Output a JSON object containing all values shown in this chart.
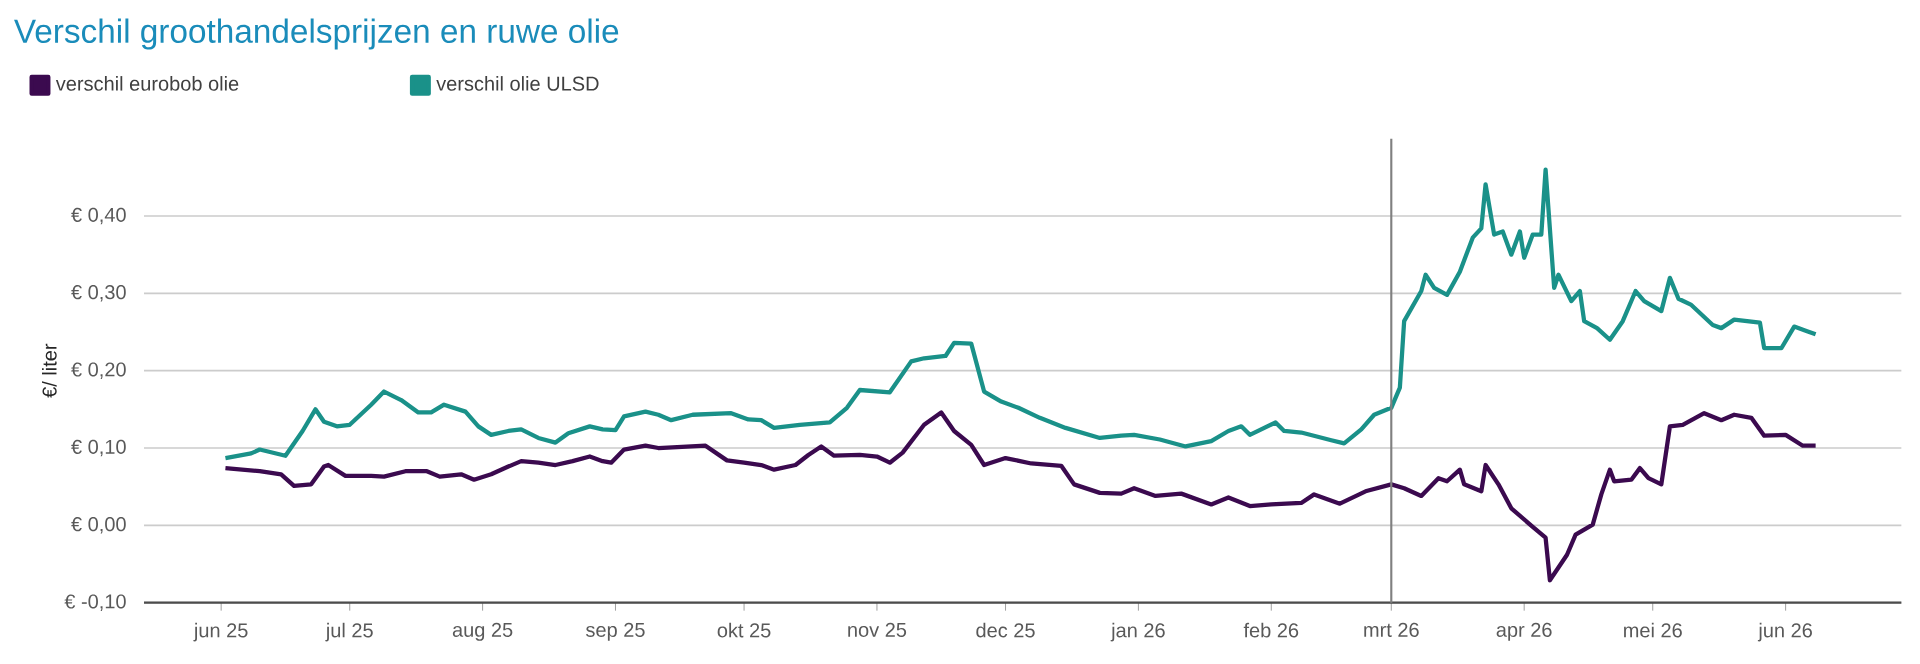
{
  "chart_data": {
    "type": "line",
    "title": "Verschil groothandelsprijzen en ruwe olie",
    "ylabel": "€/ liter",
    "xlim": [
      "2025-05-14",
      "2026-06-28"
    ],
    "ylim": [
      -0.1,
      0.5
    ],
    "xticks": [
      {
        "value": "2025-06-01",
        "label": "jun 25"
      },
      {
        "value": "2025-07-01",
        "label": "jul 25"
      },
      {
        "value": "2025-08-01",
        "label": "aug 25"
      },
      {
        "value": "2025-09-01",
        "label": "sep 25"
      },
      {
        "value": "2025-10-01",
        "label": "okt 25"
      },
      {
        "value": "2025-11-01",
        "label": "nov 25"
      },
      {
        "value": "2025-12-01",
        "label": "dec 25"
      },
      {
        "value": "2026-01-01",
        "label": "jan 26"
      },
      {
        "value": "2026-02-01",
        "label": "feb 26"
      },
      {
        "value": "2026-03-01",
        "label": "mrt 26"
      },
      {
        "value": "2026-04-01",
        "label": "apr 26"
      },
      {
        "value": "2026-05-01",
        "label": "mei 26"
      },
      {
        "value": "2026-06-01",
        "label": "jun 26"
      }
    ],
    "yticks": [
      {
        "value": -0.1,
        "label": "€ -0,10"
      },
      {
        "value": 0,
        "label": "€ 0,00"
      },
      {
        "value": 0.1,
        "label": "€ 0,10"
      },
      {
        "value": 0.2,
        "label": "€ 0,20"
      },
      {
        "value": 0.3,
        "label": "€ 0,30"
      },
      {
        "value": 0.4,
        "label": "€ 0,40"
      }
    ],
    "grid": "y",
    "legend": "top left",
    "ref_lines": [
      {
        "axis": "x",
        "value": "2026-03-01",
        "color": "#808080"
      }
    ],
    "series": [
      {
        "name": "verschil eurobob olie",
        "color": "#3b0a4f",
        "x": [
          "2025-06-02",
          "2025-06-10",
          "2025-06-15",
          "2025-06-18",
          "2025-06-22",
          "2025-06-25",
          "2025-06-26",
          "2025-06-30",
          "2025-07-06",
          "2025-07-09",
          "2025-07-14",
          "2025-07-19",
          "2025-07-22",
          "2025-07-27",
          "2025-07-30",
          "2025-08-03",
          "2025-08-07",
          "2025-08-10",
          "2025-08-14",
          "2025-08-18",
          "2025-08-22",
          "2025-08-26",
          "2025-08-29",
          "2025-08-31",
          "2025-09-03",
          "2025-09-08",
          "2025-09-11",
          "2025-09-22",
          "2025-09-27",
          "2025-10-01",
          "2025-10-05",
          "2025-10-08",
          "2025-10-13",
          "2025-10-16",
          "2025-10-19",
          "2025-10-22",
          "2025-10-28",
          "2025-11-01",
          "2025-11-04",
          "2025-11-07",
          "2025-11-12",
          "2025-11-16",
          "2025-11-19",
          "2025-11-23",
          "2025-11-26",
          "2025-12-01",
          "2025-12-07",
          "2025-12-14",
          "2025-12-17",
          "2025-12-23",
          "2025-12-28",
          "2025-12-31",
          "2026-01-05",
          "2026-01-11",
          "2026-01-18",
          "2026-01-22",
          "2026-01-27",
          "2026-02-01",
          "2026-02-08",
          "2026-02-11",
          "2026-02-17",
          "2026-02-23",
          "2026-03-01",
          "2026-03-04",
          "2026-03-08",
          "2026-03-12",
          "2026-03-14",
          "2026-03-17",
          "2026-03-18",
          "2026-03-22",
          "2026-03-23",
          "2026-03-26",
          "2026-03-29",
          "2026-04-03",
          "2026-04-06",
          "2026-04-07",
          "2026-04-11",
          "2026-04-13",
          "2026-04-17",
          "2026-04-19",
          "2026-04-21",
          "2026-04-22",
          "2026-04-26",
          "2026-04-28",
          "2026-04-30",
          "2026-05-03",
          "2026-05-05",
          "2026-05-08",
          "2026-05-13",
          "2026-05-17",
          "2026-05-20",
          "2026-05-24",
          "2026-05-27",
          "2026-06-01",
          "2026-06-05",
          "2026-06-08"
        ],
        "values": [
          0.074,
          0.07,
          0.066,
          0.051,
          0.053,
          0.076,
          0.078,
          0.064,
          0.064,
          0.063,
          0.07,
          0.07,
          0.063,
          0.066,
          0.059,
          0.066,
          0.076,
          0.083,
          0.081,
          0.078,
          0.083,
          0.089,
          0.083,
          0.081,
          0.098,
          0.103,
          0.1,
          0.103,
          0.084,
          0.081,
          0.078,
          0.072,
          0.078,
          0.091,
          0.102,
          0.09,
          0.091,
          0.089,
          0.081,
          0.094,
          0.13,
          0.146,
          0.122,
          0.104,
          0.078,
          0.087,
          0.08,
          0.077,
          0.053,
          0.042,
          0.041,
          0.048,
          0.038,
          0.041,
          0.027,
          0.036,
          0.025,
          0.027,
          0.029,
          0.04,
          0.028,
          0.044,
          0.053,
          0.048,
          0.038,
          0.061,
          0.057,
          0.072,
          0.053,
          0.044,
          0.078,
          0.053,
          0.022,
          -0.002,
          -0.016,
          -0.071,
          -0.038,
          -0.012,
          0.001,
          0.04,
          0.072,
          0.057,
          0.059,
          0.074,
          0.061,
          0.053,
          0.128,
          0.13,
          0.145,
          0.136,
          0.143,
          0.139,
          0.116,
          0.117,
          0.103,
          0.103
        ]
      },
      {
        "name": "verschil olie ULSD",
        "color": "#1a9189",
        "x": [
          "2025-06-02",
          "2025-06-08",
          "2025-06-10",
          "2025-06-16",
          "2025-06-20",
          "2025-06-23",
          "2025-06-25",
          "2025-06-28",
          "2025-07-01",
          "2025-07-06",
          "2025-07-09",
          "2025-07-13",
          "2025-07-17",
          "2025-07-20",
          "2025-07-23",
          "2025-07-28",
          "2025-07-31",
          "2025-08-03",
          "2025-08-07",
          "2025-08-10",
          "2025-08-14",
          "2025-08-18",
          "2025-08-21",
          "2025-08-26",
          "2025-08-29",
          "2025-09-01",
          "2025-09-03",
          "2025-09-08",
          "2025-09-11",
          "2025-09-14",
          "2025-09-19",
          "2025-09-28",
          "2025-10-02",
          "2025-10-05",
          "2025-10-08",
          "2025-10-14",
          "2025-10-21",
          "2025-10-25",
          "2025-10-28",
          "2025-11-04",
          "2025-11-09",
          "2025-11-12",
          "2025-11-17",
          "2025-11-19",
          "2025-11-23",
          "2025-11-26",
          "2025-11-30",
          "2025-12-04",
          "2025-12-09",
          "2025-12-15",
          "2025-12-23",
          "2025-12-28",
          "2025-12-31",
          "2026-01-06",
          "2026-01-12",
          "2026-01-18",
          "2026-01-22",
          "2026-01-25",
          "2026-01-27",
          "2026-02-02",
          "2026-02-04",
          "2026-02-08",
          "2026-02-15",
          "2026-02-18",
          "2026-02-22",
          "2026-02-25",
          "2026-03-01",
          "2026-03-03",
          "2026-03-04",
          "2026-03-08",
          "2026-03-09",
          "2026-03-11",
          "2026-03-14",
          "2026-03-17",
          "2026-03-20",
          "2026-03-22",
          "2026-03-23",
          "2026-03-25",
          "2026-03-27",
          "2026-03-29",
          "2026-03-31",
          "2026-04-01",
          "2026-04-03",
          "2026-04-05",
          "2026-04-06",
          "2026-04-08",
          "2026-04-09",
          "2026-04-12",
          "2026-04-14",
          "2026-04-15",
          "2026-04-18",
          "2026-04-21",
          "2026-04-24",
          "2026-04-27",
          "2026-04-29",
          "2026-05-03",
          "2026-05-05",
          "2026-05-07",
          "2026-05-10",
          "2026-05-15",
          "2026-05-17",
          "2026-05-20",
          "2026-05-23",
          "2026-05-26",
          "2026-05-27",
          "2026-05-31",
          "2026-06-03",
          "2026-06-06",
          "2026-06-08"
        ],
        "values": [
          0.087,
          0.093,
          0.098,
          0.09,
          0.122,
          0.15,
          0.134,
          0.128,
          0.13,
          0.156,
          0.173,
          0.162,
          0.146,
          0.146,
          0.156,
          0.147,
          0.128,
          0.117,
          0.122,
          0.124,
          0.113,
          0.107,
          0.119,
          0.128,
          0.124,
          0.123,
          0.141,
          0.147,
          0.143,
          0.136,
          0.143,
          0.145,
          0.137,
          0.136,
          0.126,
          0.13,
          0.133,
          0.152,
          0.175,
          0.172,
          0.212,
          0.216,
          0.219,
          0.236,
          0.235,
          0.173,
          0.16,
          0.152,
          0.139,
          0.126,
          0.113,
          0.116,
          0.117,
          0.111,
          0.102,
          0.109,
          0.122,
          0.128,
          0.117,
          0.133,
          0.122,
          0.12,
          0.11,
          0.106,
          0.124,
          0.143,
          0.152,
          0.178,
          0.264,
          0.303,
          0.324,
          0.307,
          0.298,
          0.328,
          0.372,
          0.384,
          0.441,
          0.376,
          0.38,
          0.35,
          0.38,
          0.346,
          0.376,
          0.376,
          0.46,
          0.307,
          0.324,
          0.29,
          0.303,
          0.264,
          0.255,
          0.24,
          0.264,
          0.303,
          0.29,
          0.277,
          0.32,
          0.293,
          0.285,
          0.259,
          0.255,
          0.266,
          0.264,
          0.262,
          0.229,
          0.229,
          0.257,
          0.251,
          0.247
        ]
      }
    ]
  }
}
